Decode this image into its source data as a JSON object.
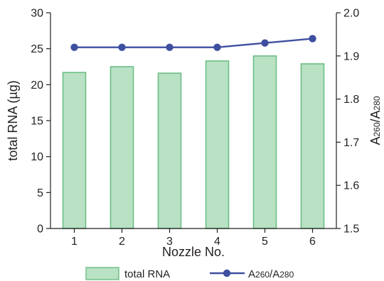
{
  "chart_data": {
    "type": "bar",
    "categories": [
      "1",
      "2",
      "3",
      "4",
      "5",
      "6"
    ],
    "xlabel": "Nozzle No.",
    "series": [
      {
        "name": "total RNA",
        "type": "bar",
        "axis": "left",
        "values": [
          21.7,
          22.5,
          21.6,
          23.3,
          24.0,
          22.9
        ],
        "fill": "#b9e1c4",
        "stroke": "#6cbf85"
      },
      {
        "name": "A260/A280",
        "name_parts": [
          "A",
          "260",
          "/A",
          "280"
        ],
        "type": "line",
        "axis": "right",
        "values": [
          1.92,
          1.92,
          1.92,
          1.92,
          1.93,
          1.94
        ],
        "color": "#3f4fa0"
      }
    ],
    "y_left": {
      "label": "total RNA (µg)",
      "ylim": [
        0,
        30
      ],
      "ticks": [
        0,
        5,
        10,
        15,
        20,
        25,
        30
      ]
    },
    "y_right": {
      "label_parts": [
        "A",
        "260",
        "/A",
        "280"
      ],
      "ylim": [
        1.5,
        2.0
      ],
      "ticks": [
        1.5,
        1.6,
        1.7,
        1.8,
        1.9,
        2.0
      ],
      "tick_labels": [
        "1.5",
        "1.6",
        "1.7",
        "1.8",
        "1.9",
        "2.0"
      ]
    },
    "grid": false,
    "legend_position": "bottom"
  }
}
